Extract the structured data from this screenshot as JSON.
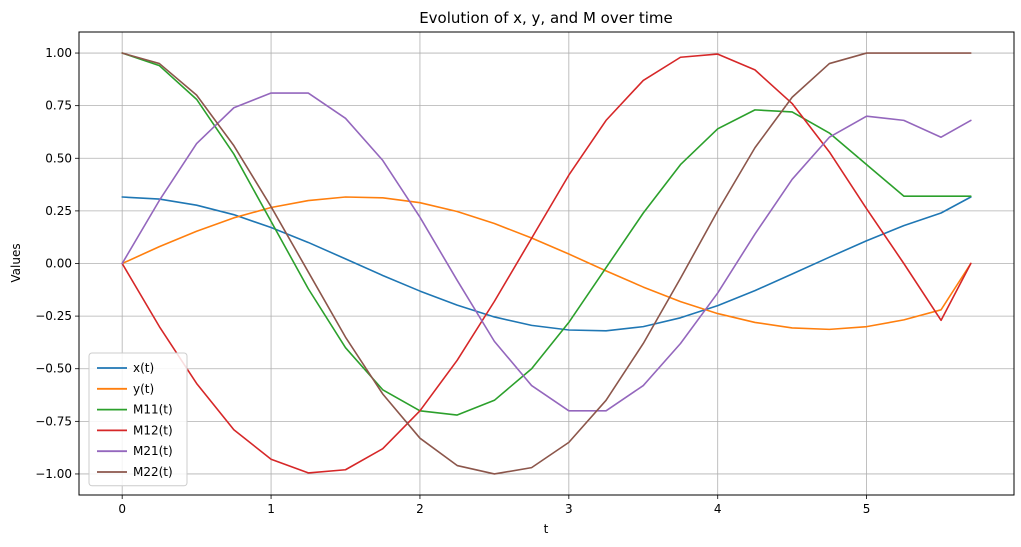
{
  "chart_data": {
    "type": "line",
    "title": "Evolution of x, y, and M over time",
    "xlabel": "t",
    "ylabel": "Values",
    "xlim": [
      -0.29,
      5.99
    ],
    "ylim": [
      -1.1,
      1.1
    ],
    "xticks": [
      0,
      1,
      2,
      3,
      4,
      5
    ],
    "xtick_labels": [
      "0",
      "1",
      "2",
      "3",
      "4",
      "5"
    ],
    "yticks": [
      -1.0,
      -0.75,
      -0.5,
      -0.25,
      0.0,
      0.25,
      0.5,
      0.75,
      1.0
    ],
    "ytick_labels": [
      "−1.00",
      "−0.75",
      "−0.50",
      "−0.25",
      "0.00",
      "0.25",
      "0.50",
      "0.75",
      "1.00"
    ],
    "grid": true,
    "legend_position": "lower-left",
    "x": [
      0,
      0.25,
      0.5,
      0.75,
      1.0,
      1.25,
      1.5,
      1.75,
      2.0,
      2.25,
      2.5,
      2.75,
      3.0,
      3.25,
      3.5,
      3.75,
      4.0,
      4.25,
      4.5,
      4.75,
      5.0,
      5.25,
      5.5,
      5.7
    ],
    "series": [
      {
        "name": "x(t)",
        "color": "#1f77b4",
        "values": [
          0.316,
          0.306,
          0.277,
          0.232,
          0.171,
          0.1,
          0.022,
          -0.057,
          -0.131,
          -0.198,
          -0.254,
          -0.294,
          -0.316,
          -0.32,
          -0.3,
          -0.258,
          -0.2,
          -0.129,
          -0.05,
          0.03,
          0.108,
          0.18,
          0.24,
          0.316
        ]
      },
      {
        "name": "y(t)",
        "color": "#ff7f0e",
        "values": [
          0.0,
          0.08,
          0.153,
          0.217,
          0.266,
          0.299,
          0.316,
          0.312,
          0.289,
          0.247,
          0.19,
          0.121,
          0.045,
          -0.035,
          -0.112,
          -0.181,
          -0.238,
          -0.28,
          -0.306,
          -0.313,
          -0.3,
          -0.268,
          -0.22,
          0.0
        ]
      },
      {
        "name": "M11(t)",
        "color": "#2ca02c",
        "values": [
          1.0,
          0.94,
          0.78,
          0.52,
          0.2,
          -0.12,
          -0.4,
          -0.6,
          -0.7,
          -0.72,
          -0.65,
          -0.5,
          -0.28,
          -0.02,
          0.24,
          0.47,
          0.64,
          0.73,
          0.72,
          0.62,
          0.47,
          0.32,
          0.32,
          0.32
        ]
      },
      {
        "name": "M12(t)",
        "color": "#d62728",
        "values": [
          0.0,
          -0.3,
          -0.57,
          -0.79,
          -0.93,
          -0.995,
          -0.98,
          -0.88,
          -0.7,
          -0.46,
          -0.18,
          0.12,
          0.42,
          0.68,
          0.87,
          0.98,
          0.995,
          0.92,
          0.76,
          0.53,
          0.26,
          0.0,
          -0.27,
          0.0
        ]
      },
      {
        "name": "M21(t)",
        "color": "#9467bd",
        "values": [
          0.0,
          0.3,
          0.57,
          0.74,
          0.81,
          0.81,
          0.69,
          0.49,
          0.22,
          -0.08,
          -0.37,
          -0.58,
          -0.7,
          -0.7,
          -0.58,
          -0.38,
          -0.14,
          0.14,
          0.4,
          0.6,
          0.7,
          0.68,
          0.6,
          0.68
        ]
      },
      {
        "name": "M22(t)",
        "color": "#8c564b",
        "values": [
          1.0,
          0.95,
          0.8,
          0.56,
          0.27,
          -0.04,
          -0.35,
          -0.62,
          -0.83,
          -0.96,
          -1.0,
          -0.97,
          -0.85,
          -0.65,
          -0.38,
          -0.07,
          0.25,
          0.55,
          0.79,
          0.95,
          1.0,
          1.0,
          1.0,
          1.0
        ]
      }
    ]
  }
}
